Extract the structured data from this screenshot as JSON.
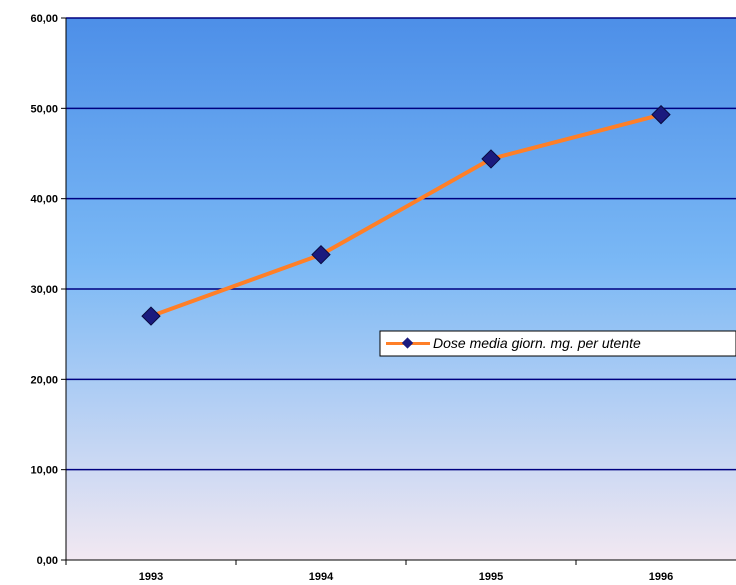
{
  "chart_data": {
    "type": "line",
    "categories": [
      "1993",
      "1994",
      "1995",
      "1996"
    ],
    "series": [
      {
        "name": "Dose media giorn. mg. per utente",
        "values": [
          27.0,
          33.8,
          44.4,
          49.3
        ]
      }
    ],
    "y_ticks": [
      "0,00",
      "10,00",
      "20,00",
      "30,00",
      "40,00",
      "50,00",
      "60,00"
    ],
    "ylim": [
      0,
      60
    ],
    "grid": true,
    "legend_position": "right",
    "colors": {
      "line": "#ff7f27",
      "marker": "#1a1a7e",
      "grid": "#000080",
      "bg_top": "#4d8fe8",
      "bg_mid": "#7ab8f5",
      "bg_bottom": "#f2e8f2"
    }
  }
}
